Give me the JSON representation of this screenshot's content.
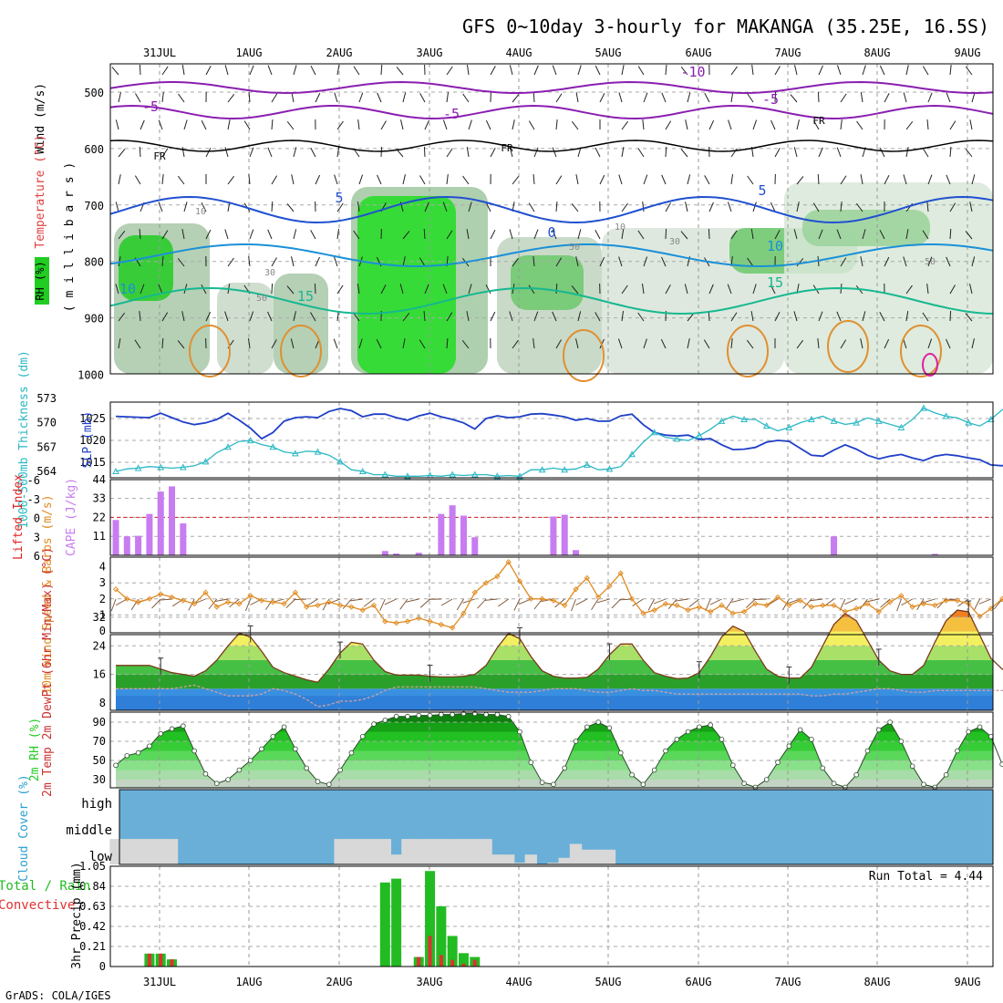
{
  "title": "GFS 0~10day 3-hourly for MAKANGA (35.25E, 16.5S)",
  "footer": "GrADS: COLA/IGES",
  "colors": {
    "purple": "#8a1fb0",
    "slp": "#1f3fc8",
    "thickness": "#2ab8c4",
    "cape": "#c77cf0",
    "li": "#e02020",
    "wind10m": "#e08a20",
    "rh_green": "#22cc22",
    "cloud_bg": "#6aafd8",
    "cloud_fill": "#d8d8d8",
    "precip_total": "#22bb22",
    "precip_conv": "#e03030"
  },
  "chart_data": [
    {
      "type": "heatmap",
      "panel": "upper-air",
      "labels": {
        "wind": "Wind (m/s)",
        "temp": "Temperature (°C)",
        "rh": "RH (%)",
        "axis": "( m i l l i b a r s )"
      },
      "x_dates": [
        "31JUL",
        "1AUG",
        "2AUG",
        "3AUG",
        "4AUG",
        "5AUG",
        "6AUG",
        "7AUG",
        "8AUG",
        "9AUG"
      ],
      "y_levels": [
        500,
        600,
        700,
        800,
        900,
        1000
      ],
      "isotherm_labels": [
        "-10",
        "-5",
        "-5",
        "-5",
        "FR",
        "FR",
        "FR",
        "5",
        "5",
        "0",
        "10",
        "10",
        "15",
        "15"
      ],
      "rh_labels": [
        "10",
        "30",
        "50",
        "50",
        "10",
        "30",
        "50"
      ]
    },
    {
      "type": "line",
      "panel": "slp-thickness",
      "ylabel_left": "1000-500mb Thickness (dm)",
      "ylabel_right": "SLP (mb)",
      "thickness_ticks": [
        564,
        567,
        570,
        573
      ],
      "slp_ticks": [
        1015,
        1020,
        1025
      ],
      "series": [
        {
          "name": "SLP",
          "values": [
            1025.5,
            1025.4,
            1025.3,
            1025.2,
            1026.2,
            1025.2,
            1024.2,
            1023.6,
            1024.0,
            1024.8,
            1026.2,
            1024.6,
            1022.8,
            1020.4,
            1021.8,
            1024.4,
            1025.2,
            1025.4,
            1025.2,
            1026.6,
            1027.3,
            1026.8,
            1025.4,
            1026.0,
            1026.0,
            1025.2,
            1024.6,
            1025.6,
            1026.2,
            1025.4,
            1024.8,
            1024.0,
            1022.6,
            1025.0,
            1025.6,
            1025.2,
            1025.4,
            1026.0,
            1026.1,
            1025.8,
            1025.4,
            1024.6,
            1025.0,
            1024.4,
            1024.4,
            1025.6,
            1026.0,
            1023.6,
            1021.8,
            1021.2,
            1021.0,
            1021.2,
            1020.2,
            1020.4,
            1019.0,
            1017.9,
            1018.0,
            1018.4,
            1019.6,
            1020.0,
            1019.8,
            1018.2,
            1016.6,
            1016.4,
            1017.8,
            1019.0,
            1018.0,
            1016.6,
            1015.8,
            1016.4,
            1016.8,
            1016.0,
            1015.4,
            1016.4,
            1016.8,
            1016.5,
            1016.0,
            1015.6,
            1014.4,
            1014.2,
            1015.2,
            1016.4,
            1018.6
          ]
        },
        {
          "name": "Thickness",
          "values": [
            564.0,
            564.3,
            564.4,
            564.6,
            564.5,
            564.4,
            564.5,
            564.7,
            565.2,
            566.3,
            567.0,
            567.7,
            567.8,
            567.3,
            567.0,
            566.4,
            566.2,
            566.5,
            566.4,
            566.0,
            565.2,
            564.2,
            564.0,
            563.6,
            563.6,
            563.4,
            563.4,
            563.4,
            563.5,
            563.4,
            563.6,
            563.5,
            563.6,
            563.6,
            563.4,
            563.5,
            563.4,
            564.2,
            564.2,
            564.4,
            564.2,
            564.3,
            564.8,
            564.2,
            564.3,
            564.6,
            566.1,
            567.6,
            568.8,
            568.2,
            568.0,
            567.8,
            568.4,
            569.2,
            570.2,
            570.8,
            570.4,
            570.4,
            569.6,
            569.0,
            569.4,
            570.0,
            570.4,
            570.8,
            570.2,
            569.8,
            570.0,
            570.6,
            570.2,
            569.8,
            569.4,
            570.4,
            571.8,
            571.2,
            570.8,
            570.6,
            570.0,
            569.6,
            570.4,
            571.6,
            571.6,
            571.0,
            570.6
          ]
        }
      ]
    },
    {
      "type": "bar",
      "panel": "cape-li",
      "ylabel_left": "Lifted Index",
      "ylabel_right": "CAPE (J/kg)",
      "cape_ticks": [
        11,
        22,
        33,
        44
      ],
      "li_ticks": [
        "6",
        "3",
        "0",
        "-3",
        "-6"
      ],
      "bars": [
        [
          0,
          20.5
        ],
        [
          1,
          11.0
        ],
        [
          2,
          11.3
        ],
        [
          3,
          24.0
        ],
        [
          4,
          37.0
        ],
        [
          5,
          40.0
        ],
        [
          6,
          18.5
        ],
        [
          24,
          2.5
        ],
        [
          25,
          1.0
        ],
        [
          27,
          1.5
        ],
        [
          29,
          24.0
        ],
        [
          30,
          29.0
        ],
        [
          31,
          23.0
        ],
        [
          32,
          10.5
        ],
        [
          39,
          22.5
        ],
        [
          40,
          23.5
        ],
        [
          41,
          3.0
        ],
        [
          64,
          11.0
        ],
        [
          73,
          0.8
        ]
      ]
    },
    {
      "type": "line",
      "panel": "wind10m",
      "ylabel": "10m Wind Speed & Barbs (m/s)",
      "ticks": [
        0,
        1,
        2,
        3,
        4
      ],
      "series": [
        {
          "name": "10m Wind",
          "values": [
            2.6,
            2.0,
            1.8,
            2.0,
            2.3,
            2.1,
            1.9,
            1.7,
            2.4,
            1.5,
            1.8,
            1.7,
            2.2,
            1.9,
            1.8,
            1.7,
            2.4,
            1.5,
            1.6,
            1.8,
            1.6,
            1.5,
            1.3,
            1.6,
            0.6,
            0.5,
            0.6,
            0.8,
            0.6,
            0.4,
            0.2,
            1.1,
            2.4,
            3.0,
            3.4,
            4.3,
            3.1,
            2.0,
            2.0,
            1.9,
            1.6,
            2.6,
            3.3,
            2.1,
            2.8,
            3.6,
            2.0,
            1.1,
            1.3,
            1.7,
            1.6,
            1.3,
            1.5,
            1.2,
            1.6,
            1.1,
            1.2,
            1.7,
            1.6,
            2.1,
            1.6,
            1.9,
            1.5,
            1.6,
            1.6,
            1.2,
            1.4,
            1.7,
            1.2,
            1.8,
            2.2,
            1.5,
            1.7,
            1.6,
            1.9,
            1.9,
            1.7,
            0.9,
            1.4,
            2.0,
            1.1,
            1.3,
            1.5
          ]
        }
      ]
    },
    {
      "type": "area",
      "panel": "temperature",
      "ylabel": "2m Temp 2m DewPt (6hr Min/Max) (°C)",
      "ticks": [
        8,
        16,
        24,
        32
      ],
      "series": [
        {
          "name": "Temp",
          "values": [
            18.5,
            18.5,
            18.5,
            18.5,
            17.5,
            16.5,
            16.0,
            15.5,
            17.0,
            20.0,
            24.0,
            27.5,
            26.5,
            22.5,
            18.0,
            16.5,
            15.5,
            14.5,
            13.8,
            17.5,
            22.0,
            25.0,
            24.5,
            20.0,
            16.8,
            15.8,
            15.8,
            15.8,
            15.5,
            15.3,
            15.3,
            15.5,
            16.0,
            18.5,
            23.5,
            27.5,
            26.0,
            21.0,
            17.0,
            15.5,
            15.0,
            15.0,
            15.2,
            17.5,
            21.5,
            24.5,
            24.5,
            20.0,
            16.5,
            15.5,
            14.8,
            15.0,
            16.5,
            21.0,
            26.5,
            29.5,
            28.0,
            22.5,
            17.5,
            15.5,
            15.0,
            15.0,
            18.0,
            24.0,
            30.0,
            33.0,
            31.0,
            25.5,
            20.0,
            17.0,
            16.0,
            16.0,
            18.5,
            25.0,
            31.0,
            34.0,
            33.5,
            27.0,
            20.5,
            17.5,
            16.5,
            16.5,
            22.0
          ]
        },
        {
          "name": "DewPt",
          "values": [
            12.0,
            12.0,
            12.0,
            12.0,
            12.0,
            12.0,
            12.5,
            13.0,
            12.0,
            11.0,
            10.0,
            10.0,
            10.0,
            10.5,
            12.0,
            11.5,
            10.5,
            9.0,
            7.0,
            7.5,
            8.5,
            8.5,
            9.0,
            10.0,
            11.5,
            12.5,
            12.5,
            12.5,
            12.5,
            12.5,
            12.5,
            12.5,
            12.5,
            12.0,
            11.5,
            11.0,
            11.0,
            11.0,
            11.5,
            12.0,
            12.0,
            12.0,
            11.5,
            11.0,
            11.0,
            11.5,
            12.0,
            11.5,
            11.5,
            11.0,
            10.5,
            10.5,
            10.5,
            10.5,
            10.5,
            10.5,
            10.5,
            10.5,
            10.5,
            10.5,
            10.5,
            10.5,
            10.0,
            10.0,
            10.5,
            10.5,
            11.0,
            11.5,
            12.0,
            12.0,
            11.5,
            11.0,
            11.0,
            11.5,
            11.5,
            11.5,
            11.5,
            11.5,
            11.5,
            11.5,
            11.5,
            11.5,
            11.5
          ]
        }
      ]
    },
    {
      "type": "area",
      "panel": "rh2m",
      "ylabel": "2m RH (%)",
      "ticks": [
        30,
        50,
        70,
        90
      ],
      "series": [
        {
          "name": "2m RH",
          "values": [
            45,
            55,
            58,
            65,
            78,
            83,
            86,
            60,
            36,
            26,
            30,
            40,
            50,
            62,
            75,
            85,
            62,
            42,
            28,
            25,
            40,
            58,
            75,
            88,
            92,
            96,
            96,
            97,
            97,
            98,
            98,
            99,
            99,
            98,
            98,
            96,
            80,
            48,
            27,
            25,
            42,
            70,
            85,
            90,
            84,
            58,
            35,
            25,
            40,
            60,
            72,
            80,
            85,
            87,
            72,
            45,
            26,
            22,
            30,
            48,
            65,
            82,
            72,
            42,
            26,
            22,
            35,
            60,
            82,
            90,
            70,
            44,
            25,
            22,
            35,
            60,
            80,
            85,
            75,
            46,
            28,
            22,
            24,
            35,
            50,
            72,
            58
          ]
        }
      ]
    },
    {
      "type": "bar",
      "panel": "cloud",
      "ylabel": "Cloud Cover (%)",
      "levels": [
        "high",
        "middle",
        "low"
      ],
      "low_bars": [
        [
          0,
          31
        ],
        [
          1,
          31
        ],
        [
          2,
          31
        ],
        [
          3,
          31
        ],
        [
          4,
          31
        ],
        [
          5,
          31
        ],
        [
          20,
          31
        ],
        [
          21,
          31
        ],
        [
          22,
          31
        ],
        [
          23,
          31
        ],
        [
          24,
          31
        ],
        [
          25,
          12
        ],
        [
          26,
          31
        ],
        [
          27,
          31
        ],
        [
          28,
          31
        ],
        [
          29,
          31
        ],
        [
          30,
          31
        ],
        [
          31,
          31
        ],
        [
          32,
          31
        ],
        [
          33,
          31
        ],
        [
          34,
          12
        ],
        [
          35,
          12
        ],
        [
          36,
          2
        ],
        [
          37,
          12
        ],
        [
          39,
          2
        ],
        [
          40,
          8
        ],
        [
          41,
          25
        ],
        [
          42,
          18
        ],
        [
          43,
          18
        ],
        [
          44,
          18
        ]
      ]
    },
    {
      "type": "bar",
      "panel": "precip",
      "ylabel_left": "Total / Rain Convective",
      "ylabel_right": "3hr Precip (mm)",
      "run_total_label": "Run Total = 4.44",
      "ticks": [
        "0",
        "0.21",
        "0.42",
        "0.63",
        "0.84",
        "1.05"
      ],
      "bars": [
        [
          3,
          0.135,
          0.135
        ],
        [
          4,
          0.135,
          0.135
        ],
        [
          5,
          0.075,
          0.075
        ],
        [
          24,
          0.88,
          0.0
        ],
        [
          25,
          0.92,
          0.0
        ],
        [
          27,
          0.1,
          0.1
        ],
        [
          28,
          1.0,
          0.32
        ],
        [
          29,
          0.63,
          0.12
        ],
        [
          30,
          0.32,
          0.07
        ],
        [
          31,
          0.14,
          0.03
        ],
        [
          32,
          0.1,
          0.07
        ]
      ]
    }
  ]
}
